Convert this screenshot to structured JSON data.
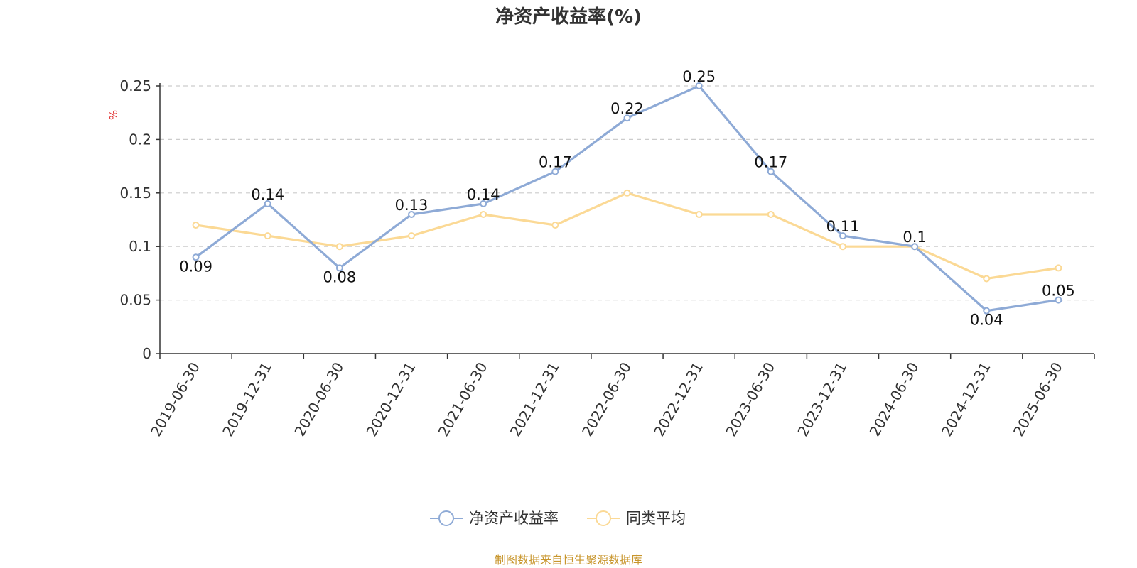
{
  "chart_data": {
    "type": "line",
    "title": "净资产收益率(%)",
    "ylabel": "%",
    "categories": [
      "2019-06-30",
      "2019-12-31",
      "2020-06-30",
      "2020-12-31",
      "2021-06-30",
      "2021-12-31",
      "2022-06-30",
      "2022-12-31",
      "2023-06-30",
      "2023-12-31",
      "2024-06-30",
      "2024-12-31",
      "2025-06-30"
    ],
    "ylim": [
      0,
      0.25
    ],
    "yticks": [
      "0",
      "0.05",
      "0.1",
      "0.15",
      "0.2",
      "0.25"
    ],
    "grid": true,
    "legend_position": "bottom",
    "series": [
      {
        "name": "净资产收益率",
        "color": "#8eaad6",
        "values": [
          0.09,
          0.14,
          0.08,
          0.13,
          0.14,
          0.17,
          0.22,
          0.25,
          0.17,
          0.11,
          0.1,
          0.04,
          0.05
        ],
        "labels": [
          "0.09",
          "0.14",
          "0.08",
          "0.13",
          "0.14",
          "0.17",
          "0.22",
          "0.25",
          "0.17",
          "0.11",
          "0.1",
          "0.04",
          "0.05"
        ]
      },
      {
        "name": "同类平均",
        "color": "#fbd995",
        "values": [
          0.12,
          0.11,
          0.1,
          0.11,
          0.13,
          0.12,
          0.15,
          0.13,
          0.13,
          0.1,
          0.1,
          0.07,
          0.08
        ]
      }
    ]
  },
  "source_note": "制图数据来自恒生聚源数据库"
}
